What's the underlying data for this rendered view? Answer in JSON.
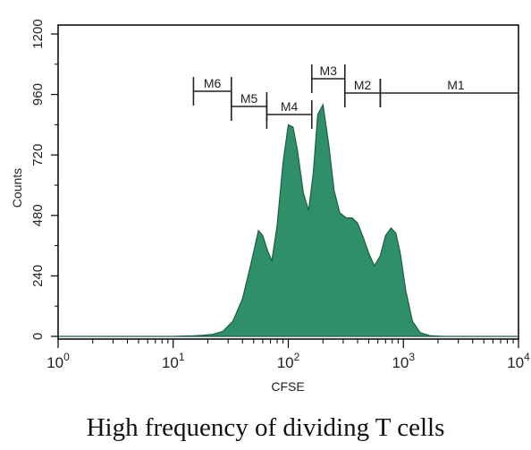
{
  "chart_data": {
    "type": "area",
    "title": "",
    "xlabel": "CFSE",
    "ylabel": "Counts",
    "x_scale": "log",
    "xlim": [
      1,
      10000
    ],
    "ylim": [
      0,
      1200
    ],
    "x_ticks": [
      {
        "value": 1,
        "base": "10",
        "exp": "0"
      },
      {
        "value": 10,
        "base": "10",
        "exp": "1"
      },
      {
        "value": 100,
        "base": "10",
        "exp": "2"
      },
      {
        "value": 1000,
        "base": "10",
        "exp": "3"
      },
      {
        "value": 10000,
        "base": "10",
        "exp": "4"
      }
    ],
    "y_ticks": [
      "0",
      "240",
      "480",
      "720",
      "960",
      "1200"
    ],
    "fill_color": "#2f8f68",
    "x": [
      1,
      3,
      10,
      15,
      18,
      22,
      27,
      33,
      40,
      48,
      55,
      60,
      66,
      72,
      80,
      90,
      100,
      110,
      120,
      135,
      150,
      165,
      180,
      200,
      225,
      250,
      280,
      320,
      360,
      400,
      450,
      500,
      560,
      630,
      700,
      780,
      860,
      940,
      1050,
      1200,
      1400,
      1700,
      2200,
      10000
    ],
    "y": [
      0,
      0,
      0,
      2,
      4,
      8,
      20,
      60,
      150,
      300,
      420,
      400,
      340,
      300,
      440,
      690,
      840,
      830,
      740,
      570,
      500,
      650,
      880,
      920,
      760,
      580,
      490,
      470,
      470,
      450,
      390,
      330,
      280,
      320,
      400,
      430,
      410,
      330,
      180,
      60,
      15,
      3,
      0,
      0
    ],
    "gates": [
      {
        "label": "M6",
        "from": 15,
        "to": 32
      },
      {
        "label": "M5",
        "from": 32,
        "to": 65
      },
      {
        "label": "M4",
        "from": 65,
        "to": 160
      },
      {
        "label": "M3",
        "from": 160,
        "to": 310
      },
      {
        "label": "M2",
        "from": 310,
        "to": 630
      },
      {
        "label": "M1",
        "from": 630,
        "to": 10000
      }
    ]
  },
  "caption": "High frequency of dividing T cells"
}
